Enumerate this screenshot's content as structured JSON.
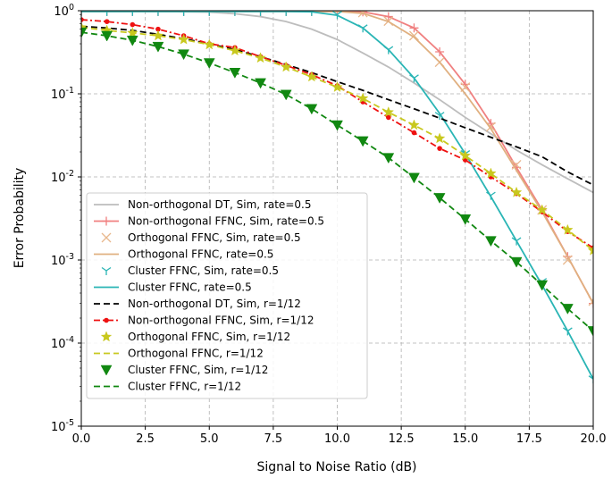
{
  "chart_data": {
    "type": "line",
    "title": "",
    "xlabel": "Signal to Noise Ratio (dB)",
    "ylabel": "Error Probability",
    "yscale": "log",
    "xlim": [
      0,
      20
    ],
    "ylim": [
      1e-05,
      1
    ],
    "grid": true,
    "legend_position": "lower-left",
    "x_ticks": [
      "0.0",
      "2.5",
      "5.0",
      "7.5",
      "10.0",
      "12.5",
      "15.0",
      "17.5",
      "20.0"
    ],
    "y_ticks": [
      {
        "base": "10",
        "exp": "0",
        "value": 1
      },
      {
        "base": "10",
        "exp": "-1",
        "value": 0.1
      },
      {
        "base": "10",
        "exp": "-2",
        "value": 0.01
      },
      {
        "base": "10",
        "exp": "-3",
        "value": 0.001
      },
      {
        "base": "10",
        "exp": "-4",
        "value": 0.0001
      },
      {
        "base": "10",
        "exp": "-5",
        "value": 1e-05
      }
    ],
    "series": [
      {
        "name": "Non-orthogonal DT, Sim, rate=0.5",
        "color": "#bdbdbd",
        "style": "solid",
        "marker": "none",
        "x": [
          0,
          1,
          2,
          3,
          4,
          5,
          6,
          7,
          8,
          9,
          10,
          11,
          12,
          13,
          14,
          15,
          16,
          17,
          18,
          19,
          20
        ],
        "y": [
          0.98,
          0.98,
          0.98,
          0.98,
          0.97,
          0.96,
          0.92,
          0.85,
          0.74,
          0.6,
          0.45,
          0.31,
          0.21,
          0.135,
          0.085,
          0.052,
          0.033,
          0.021,
          0.014,
          0.0095,
          0.0065
        ]
      },
      {
        "name": "Non-orthogonal FFNC, Sim, rate=0.5",
        "color": "#f08080",
        "style": "solid",
        "marker": "plus",
        "x": [
          0,
          1,
          2,
          3,
          4,
          5,
          6,
          7,
          8,
          9,
          10,
          11,
          12,
          13,
          14,
          15,
          16,
          17,
          18,
          19,
          20
        ],
        "y": [
          0.98,
          0.98,
          0.98,
          0.98,
          0.98,
          0.98,
          0.98,
          0.98,
          0.98,
          0.98,
          0.98,
          0.97,
          0.85,
          0.62,
          0.32,
          0.13,
          0.044,
          0.013,
          0.004,
          0.0011,
          0.0003
        ]
      },
      {
        "name": "Orthogonal FFNC, Sim, rate=0.5",
        "color": "#e8b88e",
        "style": "none",
        "marker": "x",
        "x": [
          11,
          12,
          13,
          14,
          15,
          16,
          17,
          18,
          19,
          20
        ],
        "y": [
          0.95,
          0.75,
          0.5,
          0.24,
          0.12,
          0.04,
          0.014,
          0.004,
          0.001,
          0.00032
        ]
      },
      {
        "name": "Orthogonal FFNC, rate=0.5",
        "color": "#e0b080",
        "style": "solid",
        "marker": "none",
        "x": [
          0,
          1,
          2,
          3,
          4,
          5,
          6,
          7,
          8,
          9,
          10,
          11,
          12,
          13,
          14,
          15,
          16,
          17,
          18,
          19,
          20
        ],
        "y": [
          0.98,
          0.98,
          0.98,
          0.98,
          0.98,
          0.98,
          0.98,
          0.98,
          0.98,
          0.98,
          0.98,
          0.93,
          0.74,
          0.48,
          0.24,
          0.1,
          0.038,
          0.012,
          0.0038,
          0.0011,
          0.0003
        ]
      },
      {
        "name": "Cluster FFNC, Sim, rate=0.5",
        "color": "#2ab5b5",
        "style": "none",
        "marker": "tri-down",
        "x": [
          0,
          1,
          2,
          3,
          4,
          5,
          6,
          7,
          8,
          9,
          10,
          11,
          12,
          13,
          14,
          15,
          16,
          17,
          18,
          19,
          20
        ],
        "y": [
          0.98,
          0.98,
          0.98,
          0.98,
          0.98,
          0.98,
          0.98,
          0.98,
          0.98,
          0.98,
          0.9,
          0.62,
          0.34,
          0.155,
          0.055,
          0.019,
          0.006,
          0.0017,
          0.00055,
          0.00014,
          3.7e-05
        ]
      },
      {
        "name": "Cluster FFNC, rate=0.5",
        "color": "#2ab5b5",
        "style": "solid",
        "marker": "none",
        "x": [
          0,
          1,
          2,
          3,
          4,
          5,
          6,
          7,
          8,
          9,
          10,
          11,
          12,
          13,
          14,
          15,
          16,
          17,
          18,
          19,
          20
        ],
        "y": [
          0.98,
          0.98,
          0.98,
          0.98,
          0.98,
          0.98,
          0.98,
          0.98,
          0.98,
          0.97,
          0.88,
          0.62,
          0.34,
          0.155,
          0.058,
          0.019,
          0.0058,
          0.0017,
          0.0005,
          0.00014,
          3.7e-05
        ]
      },
      {
        "name": "Non-orthogonal DT, Sim, r=1/12",
        "color": "#000000",
        "style": "dashed",
        "marker": "none",
        "x": [
          0,
          1,
          2,
          3,
          4,
          5,
          6,
          7,
          8,
          9,
          10,
          11,
          12,
          13,
          14,
          15,
          16,
          17,
          18,
          19,
          20
        ],
        "y": [
          0.65,
          0.62,
          0.58,
          0.52,
          0.46,
          0.4,
          0.34,
          0.28,
          0.225,
          0.18,
          0.14,
          0.11,
          0.085,
          0.066,
          0.051,
          0.039,
          0.03,
          0.023,
          0.0175,
          0.0115,
          0.008
        ]
      },
      {
        "name": "Non-orthogonal FFNC, Sim, r=1/12",
        "color": "#ee1111",
        "style": "dashdot",
        "marker": "dot",
        "x": [
          0,
          1,
          2,
          3,
          4,
          5,
          6,
          7,
          8,
          9,
          10,
          11,
          12,
          13,
          14,
          15,
          16,
          17,
          18,
          19,
          20
        ],
        "y": [
          0.78,
          0.74,
          0.68,
          0.6,
          0.5,
          0.4,
          0.36,
          0.28,
          0.22,
          0.17,
          0.125,
          0.08,
          0.052,
          0.034,
          0.022,
          0.016,
          0.01,
          0.0063,
          0.0038,
          0.0022,
          0.0014
        ]
      },
      {
        "name": "Orthogonal FFNC, Sim, r=1/12",
        "color": "#c8c81e",
        "style": "none",
        "marker": "star",
        "x": [
          0,
          1,
          2,
          3,
          4,
          5,
          6,
          7,
          8,
          9,
          10,
          11,
          12,
          13,
          14,
          15,
          16,
          17,
          18,
          19,
          20
        ],
        "y": [
          0.63,
          0.58,
          0.54,
          0.5,
          0.45,
          0.39,
          0.33,
          0.27,
          0.21,
          0.16,
          0.12,
          0.088,
          0.06,
          0.042,
          0.029,
          0.018,
          0.011,
          0.0065,
          0.004,
          0.0023,
          0.0013
        ]
      },
      {
        "name": "Orthogonal FFNC, r=1/12",
        "color": "#c8c81e",
        "style": "dashed",
        "marker": "none",
        "x": [
          0,
          1,
          2,
          3,
          4,
          5,
          6,
          7,
          8,
          9,
          10,
          11,
          12,
          13,
          14,
          15,
          16,
          17,
          18,
          19,
          20
        ],
        "y": [
          0.63,
          0.58,
          0.54,
          0.5,
          0.45,
          0.39,
          0.33,
          0.27,
          0.21,
          0.16,
          0.12,
          0.088,
          0.06,
          0.042,
          0.029,
          0.018,
          0.011,
          0.0065,
          0.004,
          0.0023,
          0.0013
        ]
      },
      {
        "name": "Cluster FFNC, Sim, r=1/12",
        "color": "#118811",
        "style": "none",
        "marker": "tri-down-filled",
        "x": [
          0,
          1,
          2,
          3,
          4,
          5,
          6,
          7,
          8,
          9,
          10,
          11,
          12,
          13,
          14,
          15,
          16,
          17,
          18,
          19,
          20
        ],
        "y": [
          0.55,
          0.5,
          0.44,
          0.37,
          0.3,
          0.235,
          0.18,
          0.135,
          0.098,
          0.066,
          0.042,
          0.027,
          0.017,
          0.0098,
          0.0056,
          0.0031,
          0.0017,
          0.00095,
          0.0005,
          0.00026,
          0.00014
        ]
      },
      {
        "name": "Cluster FFNC, r=1/12",
        "color": "#118811",
        "style": "dashed",
        "marker": "none",
        "x": [
          0,
          1,
          2,
          3,
          4,
          5,
          6,
          7,
          8,
          9,
          10,
          11,
          12,
          13,
          14,
          15,
          16,
          17,
          18,
          19,
          20
        ],
        "y": [
          0.55,
          0.5,
          0.44,
          0.37,
          0.3,
          0.235,
          0.18,
          0.135,
          0.098,
          0.066,
          0.042,
          0.027,
          0.017,
          0.0098,
          0.0056,
          0.0031,
          0.0017,
          0.00095,
          0.0005,
          0.00026,
          0.00014
        ]
      }
    ]
  }
}
